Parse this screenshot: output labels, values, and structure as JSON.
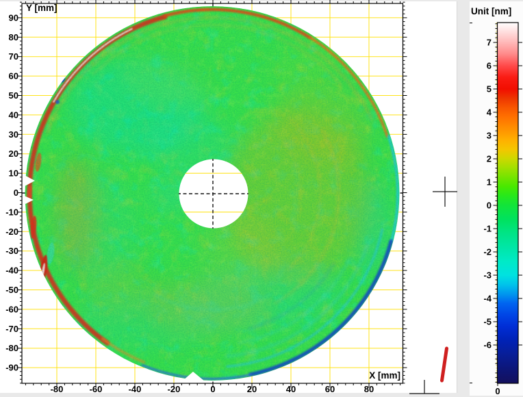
{
  "plot": {
    "title_x": "X [mm]",
    "title_y": "Y [mm]",
    "x_tick_values": [
      -80,
      -60,
      -40,
      -20,
      0,
      20,
      40,
      60,
      80
    ],
    "y_tick_values": [
      90,
      80,
      70,
      60,
      50,
      40,
      30,
      20,
      10,
      0,
      -10,
      -20,
      -30,
      -40,
      -50,
      -60,
      -70,
      -80,
      -90
    ],
    "x_range_mm": [
      -97.5,
      97.5
    ],
    "y_range_mm": [
      -98,
      98
    ],
    "grid_step_x_mm": 20,
    "grid_step_y_mm": 10
  },
  "colorbar": {
    "title": "Unit [nm]",
    "tick_values": [
      7,
      6,
      5,
      4,
      3,
      2,
      1,
      0,
      -1,
      -2,
      -3,
      -4,
      -5,
      -6
    ],
    "axis_bottom_label": "0",
    "value_range": [
      -7.65,
      7.85
    ],
    "gradient_stops": [
      {
        "value": 7.85,
        "color": "#ffffff"
      },
      {
        "value": 7.5,
        "color": "#ffe2e2"
      },
      {
        "value": 7.0,
        "color": "#ffb8b8"
      },
      {
        "value": 6.5,
        "color": "#ff8a8a"
      },
      {
        "value": 6.0,
        "color": "#ff4a4a"
      },
      {
        "value": 5.5,
        "color": "#fa1c14"
      },
      {
        "value": 5.0,
        "color": "#f20e00"
      },
      {
        "value": 4.6,
        "color": "#ee3600"
      },
      {
        "value": 4.2,
        "color": "#f85600"
      },
      {
        "value": 3.8,
        "color": "#ff7000"
      },
      {
        "value": 3.2,
        "color": "#ff9600"
      },
      {
        "value": 2.8,
        "color": "#ffb000"
      },
      {
        "value": 2.4,
        "color": "#f4c600"
      },
      {
        "value": 2.0,
        "color": "#cdd800"
      },
      {
        "value": 1.6,
        "color": "#a0e000"
      },
      {
        "value": 1.2,
        "color": "#74e400"
      },
      {
        "value": 0.8,
        "color": "#48e800"
      },
      {
        "value": 0.4,
        "color": "#26e81c"
      },
      {
        "value": 0.0,
        "color": "#12e43a"
      },
      {
        "value": -0.6,
        "color": "#00e25e"
      },
      {
        "value": -1.2,
        "color": "#00e486"
      },
      {
        "value": -1.8,
        "color": "#00e6a6"
      },
      {
        "value": -2.4,
        "color": "#00eac6"
      },
      {
        "value": -3.0,
        "color": "#00e2e0"
      },
      {
        "value": -3.4,
        "color": "#00c4ea"
      },
      {
        "value": -3.8,
        "color": "#0098ee"
      },
      {
        "value": -4.2,
        "color": "#0066f0"
      },
      {
        "value": -4.7,
        "color": "#0046e6"
      },
      {
        "value": -5.2,
        "color": "#002ed6"
      },
      {
        "value": -5.8,
        "color": "#0022b6"
      },
      {
        "value": -6.4,
        "color": "#081e98"
      },
      {
        "value": -7.0,
        "color": "#0c167a"
      },
      {
        "value": -7.65,
        "color": "#14105c"
      }
    ]
  },
  "colors": {
    "grid": "#ffe100",
    "frame": "#000000",
    "disk_base": "#3ae14b",
    "window_background": "#e9e9e9",
    "panel_background": "#ffffff",
    "marker_red": "#cf1f1f"
  },
  "chart_data": {
    "type": "heatmap",
    "title": "",
    "xlabel": "X [mm]",
    "ylabel": "Y [mm]",
    "zlabel": "Unit [nm]",
    "xlim": [
      -97.5,
      97.5
    ],
    "ylim": [
      -98,
      98
    ],
    "zlim": [
      -7.65,
      7.85
    ],
    "x_ticks": [
      -80,
      -60,
      -40,
      -20,
      0,
      20,
      40,
      60,
      80
    ],
    "y_ticks": [
      90,
      80,
      70,
      60,
      50,
      40,
      30,
      20,
      10,
      0,
      -10,
      -20,
      -30,
      -40,
      -50,
      -60,
      -70,
      -80,
      -90
    ],
    "z_ticks": [
      7,
      6,
      5,
      4,
      3,
      2,
      1,
      0,
      -1,
      -2,
      -3,
      -4,
      -5,
      -6
    ],
    "grid": true,
    "legend_position": "right colorbar",
    "shape": {
      "description": "circular optical surface (annular) height map with dashed zero-axes crosshair",
      "outer_radius_mm": 96,
      "center_hole_radius_mm": 17.5,
      "center_mm": [
        0,
        0
      ],
      "edge_notches_mm": [
        [
          -96,
          6
        ],
        [
          -96,
          -4
        ],
        [
          -10,
          -96
        ]
      ]
    },
    "features": [
      {
        "region": "overall surface",
        "value_nm": "0 to +1.5",
        "appearance": "green"
      },
      {
        "region": "upper-left quadrant inside rim",
        "value_nm": "-1 to -2.5",
        "appearance": "cyan patch"
      },
      {
        "region": "broad area right of center",
        "value_nm": "+1 to +3",
        "appearance": "yellow-orange tint"
      },
      {
        "region": "lower-center band",
        "value_nm": "+1 to +2.5",
        "appearance": "orange tint"
      },
      {
        "region": "left rim arc band (y from -60 to +80 mm)",
        "value_nm": "+5 to +7.9",
        "appearance": "red band with white saturated core"
      },
      {
        "region": "pits near left rim around y = 55-60 mm",
        "value_nm": "-6 to -7.5",
        "appearance": "dark blue spots"
      },
      {
        "region": "top rim thin ring",
        "value_nm": "+4 to +6",
        "appearance": "red-orange arc"
      },
      {
        "region": "bottom-right rim arcs",
        "value_nm": "-4 to -6.5",
        "appearance": "blue/dark-blue arcs with cyan rings inside"
      },
      {
        "region": "concentric interference-like rings across disk",
        "value_nm": "about ±1 modulation",
        "appearance": "faint orange and cyan rings"
      }
    ],
    "annotations": [
      {
        "name": "crosshair-marker",
        "location": "right margin between map panel and colorbar, mid-height"
      },
      {
        "name": "tee-marker",
        "location": "bottom margin right of plot frame"
      },
      {
        "name": "red-pen-stroke",
        "location": "bottom-right margin, short steep red stroke"
      }
    ]
  }
}
